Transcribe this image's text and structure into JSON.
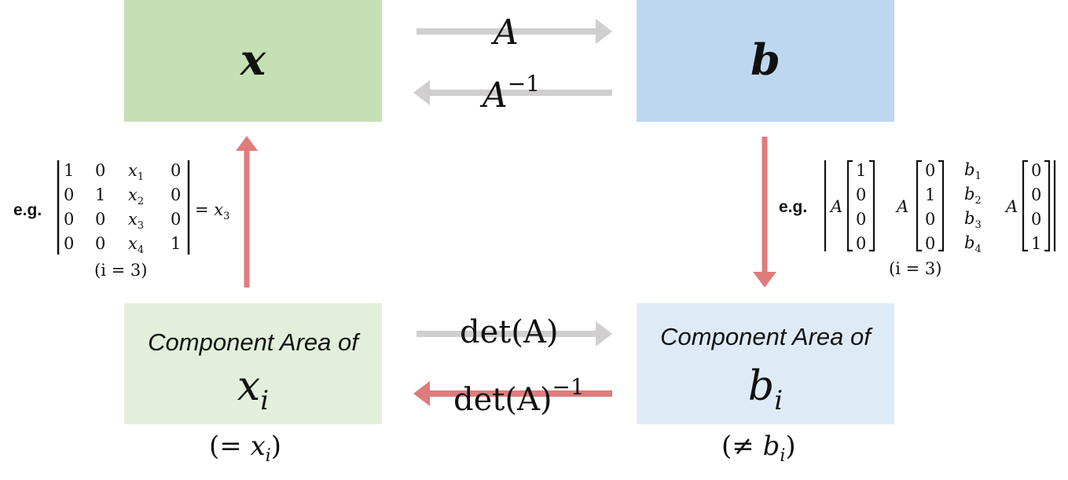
{
  "boxes": {
    "x": {
      "label": "x",
      "color": "#c5e0b4"
    },
    "b": {
      "label": "b",
      "color": "#bdd7ee"
    },
    "xi": {
      "caption": "Component Area of",
      "var": "x",
      "sub": "i",
      "color": "#e2efda"
    },
    "bi": {
      "caption": "Component Area of",
      "var": "b",
      "sub": "i",
      "color": "#deebf7"
    }
  },
  "operators": {
    "forward": "A",
    "inverse_base": "A",
    "inverse_exp": "−1",
    "det": "det(A)",
    "det_inv_base": "det(A)",
    "det_inv_exp": "−1"
  },
  "notes": {
    "xi_eq_open": "(= ",
    "xi_eq_var": "x",
    "xi_eq_sub": "i",
    "xi_eq_close": ")",
    "bi_neq_open": "(≠ ",
    "bi_neq_var": "b",
    "bi_neq_sub": "i",
    "bi_neq_close": ")"
  },
  "left_example": {
    "eg": "e.g.",
    "matrix": [
      [
        "1",
        "0",
        "x1",
        "0"
      ],
      [
        "0",
        "1",
        "x2",
        "0"
      ],
      [
        "0",
        "0",
        "x3",
        "0"
      ],
      [
        "0",
        "0",
        "x4",
        "1"
      ]
    ],
    "result_var": "x",
    "result_sub": "3",
    "index_note": "(i = 3)"
  },
  "right_example": {
    "eg": "e.g.",
    "matrix_label": "A",
    "col1": [
      "1",
      "0",
      "0",
      "0"
    ],
    "col2": [
      "0",
      "1",
      "0",
      "0"
    ],
    "col3": [
      "b1",
      "b2",
      "b3",
      "b4"
    ],
    "col4": [
      "0",
      "0",
      "0",
      "1"
    ],
    "index_note": "(i = 3)"
  },
  "colors": {
    "gray_arrow": "#d0cece",
    "red_arrow": "#e07b7b"
  }
}
